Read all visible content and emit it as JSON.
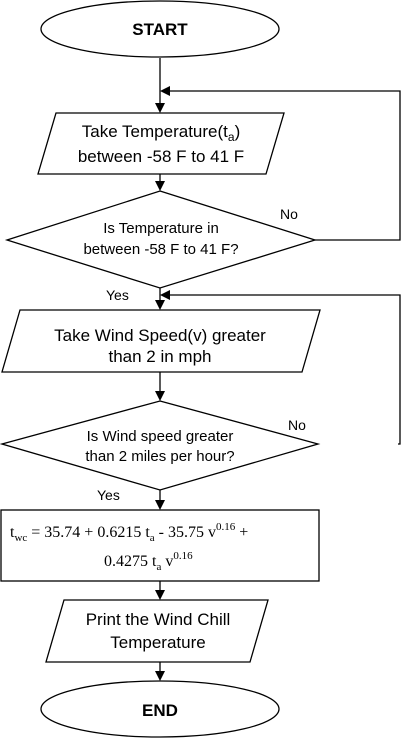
{
  "flowchart": {
    "start_label": "START",
    "input_temperature": {
      "line1_main": "Take Temperature(t",
      "line1_sub": "a",
      "line1_end": ")",
      "line2": "between  -58 F to  41 F"
    },
    "decision_temperature": {
      "line1": "Is Temperature in",
      "line2": "between -58 F to 41 F?",
      "no_label": "No",
      "yes_label": "Yes"
    },
    "input_wind": {
      "line1": "Take Wind Speed(v) greater",
      "line2": "than 2 in mph"
    },
    "decision_wind": {
      "line1": "Is Wind speed greater",
      "line2": "than 2 miles per hour?",
      "no_label": "No",
      "yes_label": "Yes"
    },
    "formula": {
      "t": "t",
      "wc": "wc",
      "eq_part1": " = 35.74 + 0.6215 t",
      "a1": "a",
      "eq_part2": " - 35.75 v",
      "exp1": "0.16",
      "eq_part3": " +",
      "line2_part1": "0.4275 t",
      "a2": "a",
      "line2_part2": " v",
      "exp2": "0.16"
    },
    "output_print": {
      "line1": "Print  the Wind Chill",
      "line2": "Temperature"
    },
    "end_label": "END"
  }
}
